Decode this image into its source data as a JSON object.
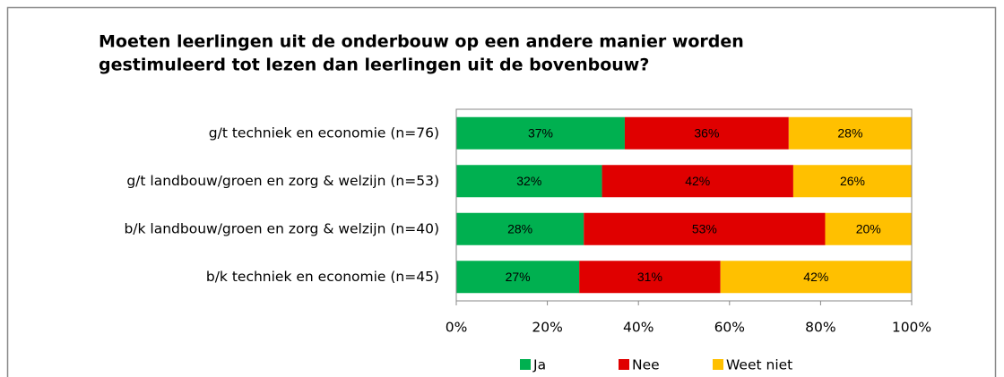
{
  "chart_data": {
    "type": "stacked-barh",
    "title": [
      "Moeten leerlingen uit de onderbouw op een andere manier worden",
      "gestimuleerd tot lezen dan leerlingen uit de bovenbouw?"
    ],
    "categories": [
      "g/t techniek en economie (n=76)",
      "g/t landbouw/groen en zorg & welzijn (n=53)",
      "b/k landbouw/groen en zorg & welzijn (n=40)",
      "b/k techniek en economie (n=45)"
    ],
    "series": [
      {
        "name": "Ja",
        "color": "#00b050",
        "values": [
          37,
          32,
          28,
          27
        ],
        "value_labels": [
          "37%",
          "32%",
          "28%",
          "27%"
        ]
      },
      {
        "name": "Nee",
        "color": "#e00000",
        "values": [
          36,
          42,
          53,
          31
        ],
        "value_labels": [
          "36%",
          "42%",
          "53%",
          "31%"
        ]
      },
      {
        "name": "Weet niet",
        "color": "#ffc000",
        "values": [
          28,
          26,
          20,
          42
        ],
        "value_labels": [
          "28%",
          "26%",
          "20%",
          "42%"
        ]
      }
    ],
    "xlim": [
      0,
      100
    ],
    "xticks": [
      {
        "value": 0,
        "label": "0%"
      },
      {
        "value": 20,
        "label": "20%"
      },
      {
        "value": 40,
        "label": "40%"
      },
      {
        "value": 60,
        "label": "60%"
      },
      {
        "value": 80,
        "label": "80%"
      },
      {
        "value": 100,
        "label": "100%"
      }
    ],
    "legend": "bottom"
  }
}
